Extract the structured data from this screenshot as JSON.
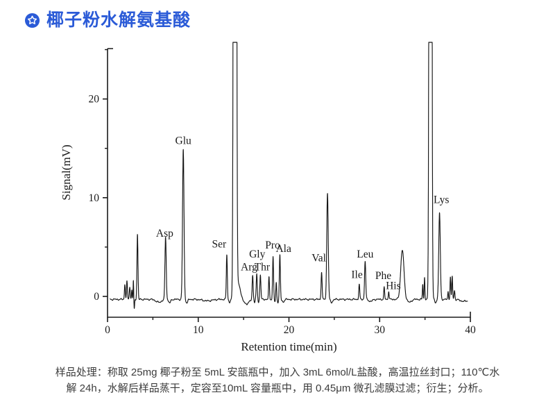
{
  "header": {
    "title": "椰子粉水解氨基酸",
    "icon": "star-badge-icon",
    "accent_color": "#2b5bd7"
  },
  "chart_data": {
    "type": "line",
    "title": "",
    "xlabel": "Retention time(min)",
    "ylabel": "Signal(mV)",
    "xlim": [
      0,
      40
    ],
    "ylim": [
      -2.1,
      25.1
    ],
    "x_major_ticks": [
      0,
      10,
      20,
      30,
      40
    ],
    "x_minor_ticks": [
      5,
      15,
      25,
      35
    ],
    "y_major_ticks": [
      0,
      10,
      20
    ],
    "y_minor_ticks": [
      5,
      15,
      25
    ],
    "grid": false,
    "legend": "none",
    "line_color": "#161616",
    "axis_color": "#1a1a1a",
    "baseline_mv": -0.3,
    "peaks": [
      {
        "label": "",
        "t": 1.91,
        "amp": 1.5,
        "w": 0.05
      },
      {
        "label": "",
        "t": 2.14,
        "amp": 1.8,
        "w": 0.05
      },
      {
        "label": "",
        "t": 2.45,
        "amp": 1.3,
        "w": 0.05
      },
      {
        "label": "",
        "t": 2.68,
        "amp": 1.0,
        "w": 0.04
      },
      {
        "label": "",
        "t": 2.85,
        "amp": 1.9,
        "w": 0.03
      },
      {
        "label": "",
        "t": 2.95,
        "amp": -1.0,
        "w": 0.035
      },
      {
        "label": "",
        "t": 3.3,
        "amp": 6.6,
        "w": 0.055
      },
      {
        "label": "Asp",
        "t": 6.4,
        "amp": 6.3,
        "w": 0.07
      },
      {
        "label": "Glu",
        "t": 8.35,
        "amp": 15.2,
        "w": 0.08
      },
      {
        "label": "Ser",
        "t": 13.15,
        "amp": 4.5,
        "w": 0.055
      },
      {
        "label": "",
        "t": 14.05,
        "amp": 300,
        "w": 0.1,
        "clipped": true
      },
      {
        "label": "",
        "t": 14.45,
        "amp": 1.5,
        "w": 0.22
      },
      {
        "label": "Arg",
        "t": 16.0,
        "amp": 2.5,
        "w": 0.055
      },
      {
        "label": "Gly",
        "t": 16.45,
        "amp": 2.6,
        "w": 0.055
      },
      {
        "label": "Thr",
        "t": 16.85,
        "amp": 2.55,
        "w": 0.055
      },
      {
        "label": "",
        "t": 17.8,
        "amp": 2.2,
        "w": 0.05
      },
      {
        "label": "Pro",
        "t": 18.25,
        "amp": 4.3,
        "w": 0.055
      },
      {
        "label": "",
        "t": 18.6,
        "amp": 1.7,
        "w": 0.045
      },
      {
        "label": "Ala",
        "t": 19.0,
        "amp": 4.5,
        "w": 0.055
      },
      {
        "label": "Val",
        "t": 23.6,
        "amp": 2.8,
        "w": 0.055
      },
      {
        "label": "",
        "t": 24.25,
        "amp": 10.8,
        "w": 0.08
      },
      {
        "label": "Ile",
        "t": 27.75,
        "amp": 1.5,
        "w": 0.055
      },
      {
        "label": "Leu",
        "t": 28.4,
        "amp": 3.85,
        "w": 0.065
      },
      {
        "label": "Phe",
        "t": 30.5,
        "amp": 1.2,
        "w": 0.05
      },
      {
        "label": "His",
        "t": 31.0,
        "amp": 0.85,
        "w": 0.045
      },
      {
        "label": "",
        "t": 32.5,
        "amp": 5.0,
        "w": 0.18
      },
      {
        "label": "",
        "t": 34.75,
        "amp": 1.5,
        "w": 0.04
      },
      {
        "label": "",
        "t": 34.95,
        "amp": 2.2,
        "w": 0.04
      },
      {
        "label": "",
        "t": 35.6,
        "amp": 300,
        "w": 0.09,
        "clipped": true
      },
      {
        "label": "Lys",
        "t": 36.6,
        "amp": 8.75,
        "w": 0.085
      },
      {
        "label": "",
        "t": 37.55,
        "amp": 0.8,
        "w": 0.04
      },
      {
        "label": "",
        "t": 37.8,
        "amp": 2.3,
        "w": 0.045
      },
      {
        "label": "",
        "t": 38.0,
        "amp": 2.35,
        "w": 0.045
      },
      {
        "label": "",
        "t": 38.25,
        "amp": 0.9,
        "w": 0.05
      }
    ],
    "baseline_dips": [
      {
        "t": 5.65,
        "amp": -0.3,
        "w": 0.3
      },
      {
        "t": 6.85,
        "amp": -0.35,
        "w": 0.12
      },
      {
        "t": 8.75,
        "amp": -0.35,
        "w": 0.1
      },
      {
        "t": 11.0,
        "amp": -0.15,
        "w": 0.5
      },
      {
        "t": 13.45,
        "amp": -0.3,
        "w": 0.08
      },
      {
        "t": 15.3,
        "amp": -0.45,
        "w": 0.3
      },
      {
        "t": 16.22,
        "amp": -0.3,
        "w": 0.05
      },
      {
        "t": 16.65,
        "amp": -0.3,
        "w": 0.05
      },
      {
        "t": 18.45,
        "amp": -0.3,
        "w": 0.05
      },
      {
        "t": 18.8,
        "amp": -0.3,
        "w": 0.05
      },
      {
        "t": 19.35,
        "amp": -0.25,
        "w": 0.12
      },
      {
        "t": 24.7,
        "amp": -0.3,
        "w": 0.12
      },
      {
        "t": 29.0,
        "amp": -0.2,
        "w": 0.2
      },
      {
        "t": 33.3,
        "amp": -0.3,
        "w": 0.2
      },
      {
        "t": 36.15,
        "amp": -0.35,
        "w": 0.08
      },
      {
        "t": 39.3,
        "amp": -0.2,
        "w": 0.4
      }
    ],
    "peak_labels": [
      {
        "text": "Asp",
        "t": 6.3,
        "mv": 6.4
      },
      {
        "text": "Glu",
        "t": 8.35,
        "mv": 15.8
      },
      {
        "text": "Ser",
        "t": 12.3,
        "mv": 5.3
      },
      {
        "text": "Arg",
        "t": 15.6,
        "mv": 3.0
      },
      {
        "text": "Gly",
        "t": 16.5,
        "mv": 4.3
      },
      {
        "text": "Thr",
        "t": 17.05,
        "mv": 3.0
      },
      {
        "text": "Pro",
        "t": 18.2,
        "mv": 5.2
      },
      {
        "text": "Ala",
        "t": 19.4,
        "mv": 4.85
      },
      {
        "text": "Val",
        "t": 23.3,
        "mv": 3.9
      },
      {
        "text": "Ile",
        "t": 27.5,
        "mv": 2.2
      },
      {
        "text": "Leu",
        "t": 28.4,
        "mv": 4.3
      },
      {
        "text": "Phe",
        "t": 30.4,
        "mv": 2.1
      },
      {
        "text": "His",
        "t": 31.5,
        "mv": 1.1
      },
      {
        "text": "Lys",
        "t": 36.8,
        "mv": 9.8
      }
    ]
  },
  "caption": {
    "line1": "样品处理：称取 25mg 椰子粉至 5mL 安瓿瓶中，加入 3mL 6mol/L盐酸，高温拉丝封口；110℃水",
    "line2": "解 24h，水解后样品蒸干，定容至10mL 容量瓶中，用 0.45μm 微孔滤膜过滤；衍生；分析。"
  }
}
